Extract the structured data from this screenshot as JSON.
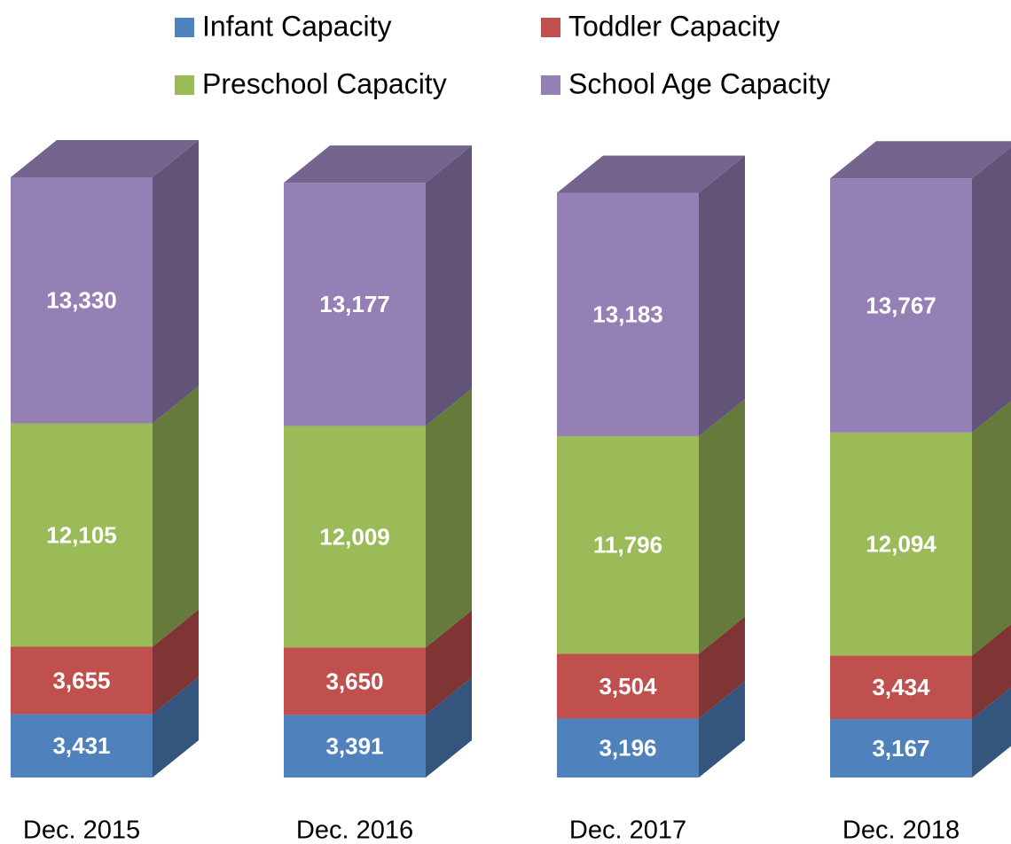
{
  "chart_data": {
    "type": "bar3d-stacked",
    "categories": [
      "Dec. 2015",
      "Dec. 2016",
      "Dec. 2017",
      "Dec. 2018"
    ],
    "series": [
      {
        "name": "Infant Capacity",
        "color": "#4f81bd",
        "values": [
          3431,
          3391,
          3196,
          3167
        ],
        "value_labels": [
          "3,431",
          "3,391",
          "3,196",
          "3,167"
        ]
      },
      {
        "name": "Toddler Capacity",
        "color": "#c0504d",
        "values": [
          3655,
          3650,
          3504,
          3434
        ],
        "value_labels": [
          "3,655",
          "3,650",
          "3,504",
          "3,434"
        ]
      },
      {
        "name": "Preschool Capacity",
        "color": "#9bbb59",
        "values": [
          12105,
          12009,
          11796,
          12094
        ],
        "value_labels": [
          "12,105",
          "12,009",
          "11,796",
          "12,094"
        ]
      },
      {
        "name": "School Age Capacity",
        "color": "#9580b6",
        "values": [
          13330,
          13177,
          13183,
          13767
        ],
        "value_labels": [
          "13,330",
          "13,177",
          "13,183",
          "13,767"
        ]
      }
    ]
  }
}
